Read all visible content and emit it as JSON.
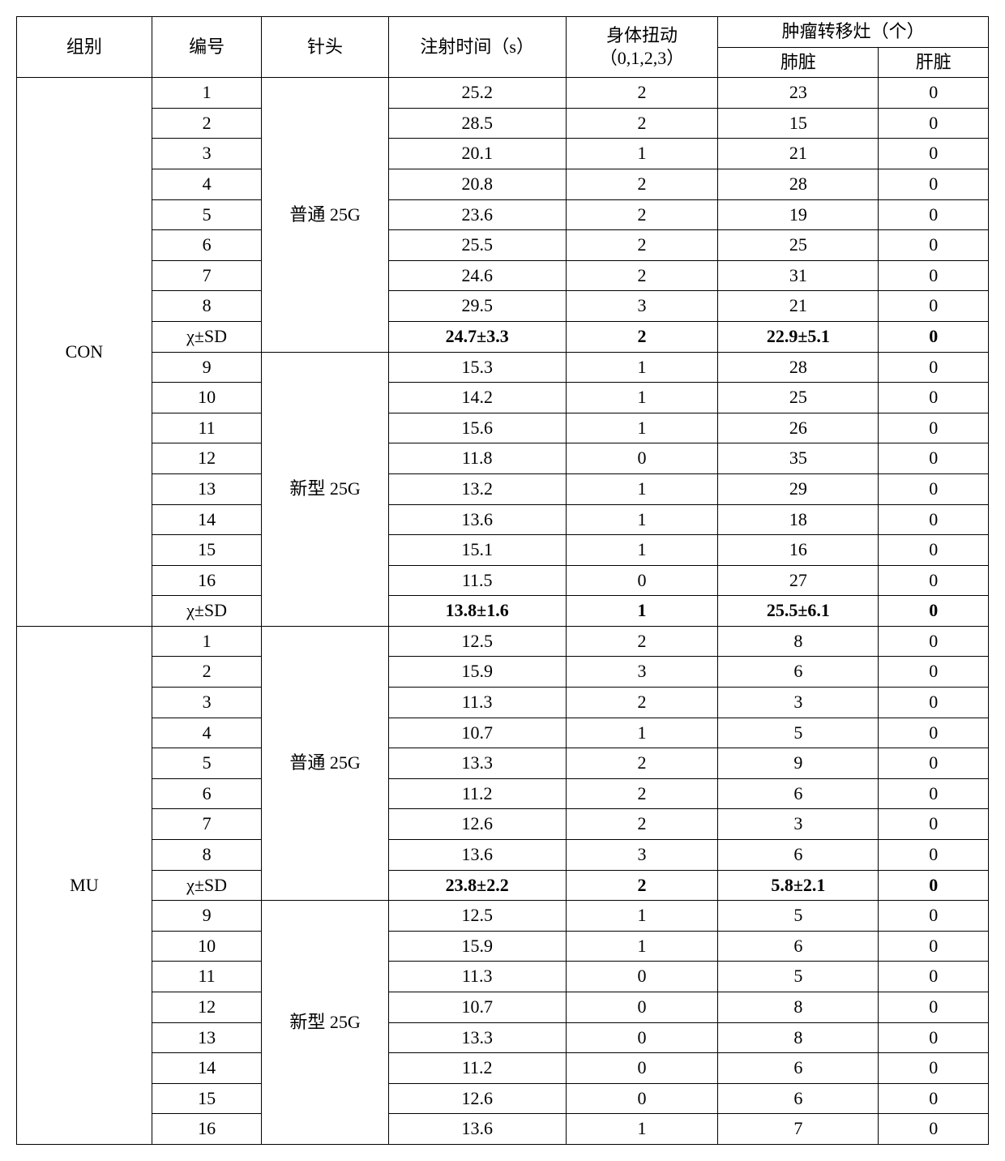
{
  "headers": {
    "group": "组别",
    "id": "编号",
    "needle": "针头",
    "time": "注射时间（s）",
    "twist": "身体扭动（0,1,2,3）",
    "tumor": "肿瘤转移灶（个）",
    "lung": "肺脏",
    "liver": "肝脏"
  },
  "summary_label": "χ±SD",
  "groups": [
    {
      "name": "CON",
      "blocks": [
        {
          "needle": "普通 25G",
          "rows": [
            {
              "id": "1",
              "time": "25.2",
              "twist": "2",
              "lung": "23",
              "liver": "0"
            },
            {
              "id": "2",
              "time": "28.5",
              "twist": "2",
              "lung": "15",
              "liver": "0"
            },
            {
              "id": "3",
              "time": "20.1",
              "twist": "1",
              "lung": "21",
              "liver": "0"
            },
            {
              "id": "4",
              "time": "20.8",
              "twist": "2",
              "lung": "28",
              "liver": "0"
            },
            {
              "id": "5",
              "time": "23.6",
              "twist": "2",
              "lung": "19",
              "liver": "0"
            },
            {
              "id": "6",
              "time": "25.5",
              "twist": "2",
              "lung": "25",
              "liver": "0"
            },
            {
              "id": "7",
              "time": "24.6",
              "twist": "2",
              "lung": "31",
              "liver": "0"
            },
            {
              "id": "8",
              "time": "29.5",
              "twist": "3",
              "lung": "21",
              "liver": "0"
            }
          ],
          "summary": {
            "time": "24.7±3.3",
            "twist": "2",
            "lung": "22.9±5.1",
            "liver": "0"
          }
        },
        {
          "needle": "新型 25G",
          "rows": [
            {
              "id": "9",
              "time": "15.3",
              "twist": "1",
              "lung": "28",
              "liver": "0"
            },
            {
              "id": "10",
              "time": "14.2",
              "twist": "1",
              "lung": "25",
              "liver": "0"
            },
            {
              "id": "11",
              "time": "15.6",
              "twist": "1",
              "lung": "26",
              "liver": "0"
            },
            {
              "id": "12",
              "time": "11.8",
              "twist": "0",
              "lung": "35",
              "liver": "0"
            },
            {
              "id": "13",
              "time": "13.2",
              "twist": "1",
              "lung": "29",
              "liver": "0"
            },
            {
              "id": "14",
              "time": "13.6",
              "twist": "1",
              "lung": "18",
              "liver": "0"
            },
            {
              "id": "15",
              "time": "15.1",
              "twist": "1",
              "lung": "16",
              "liver": "0"
            },
            {
              "id": "16",
              "time": "11.5",
              "twist": "0",
              "lung": "27",
              "liver": "0"
            }
          ],
          "summary": {
            "time": "13.8±1.6",
            "twist": "1",
            "lung": "25.5±6.1",
            "liver": "0"
          }
        }
      ]
    },
    {
      "name": "MU",
      "blocks": [
        {
          "needle": "普通 25G",
          "rows": [
            {
              "id": "1",
              "time": "12.5",
              "twist": "2",
              "lung": "8",
              "liver": "0"
            },
            {
              "id": "2",
              "time": "15.9",
              "twist": "3",
              "lung": "6",
              "liver": "0"
            },
            {
              "id": "3",
              "time": "11.3",
              "twist": "2",
              "lung": "3",
              "liver": "0"
            },
            {
              "id": "4",
              "time": "10.7",
              "twist": "1",
              "lung": "5",
              "liver": "0"
            },
            {
              "id": "5",
              "time": "13.3",
              "twist": "2",
              "lung": "9",
              "liver": "0"
            },
            {
              "id": "6",
              "time": "11.2",
              "twist": "2",
              "lung": "6",
              "liver": "0"
            },
            {
              "id": "7",
              "time": "12.6",
              "twist": "2",
              "lung": "3",
              "liver": "0"
            },
            {
              "id": "8",
              "time": "13.6",
              "twist": "3",
              "lung": "6",
              "liver": "0"
            }
          ],
          "summary": {
            "time": "23.8±2.2",
            "twist": "2",
            "lung": "5.8±2.1",
            "liver": "0"
          }
        },
        {
          "needle": "新型 25G",
          "rows": [
            {
              "id": "9",
              "time": "12.5",
              "twist": "1",
              "lung": "5",
              "liver": "0"
            },
            {
              "id": "10",
              "time": "15.9",
              "twist": "1",
              "lung": "6",
              "liver": "0"
            },
            {
              "id": "11",
              "time": "11.3",
              "twist": "0",
              "lung": "5",
              "liver": "0"
            },
            {
              "id": "12",
              "time": "10.7",
              "twist": "0",
              "lung": "8",
              "liver": "0"
            },
            {
              "id": "13",
              "time": "13.3",
              "twist": "0",
              "lung": "8",
              "liver": "0"
            },
            {
              "id": "14",
              "time": "11.2",
              "twist": "0",
              "lung": "6",
              "liver": "0"
            },
            {
              "id": "15",
              "time": "12.6",
              "twist": "0",
              "lung": "6",
              "liver": "0"
            },
            {
              "id": "16",
              "time": "13.6",
              "twist": "1",
              "lung": "7",
              "liver": "0"
            }
          ],
          "summary": null
        }
      ]
    }
  ]
}
